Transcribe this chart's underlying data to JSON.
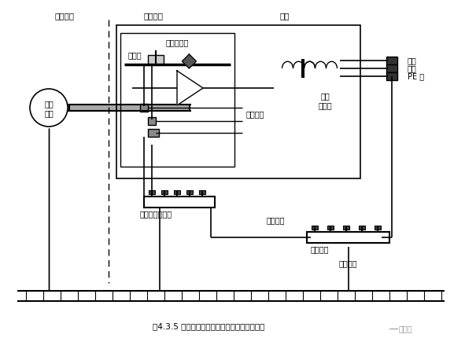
{
  "title": "图4.3.5 齐纳式安全栅本安系统接地连接示意图",
  "watermark": "仪表圈",
  "labels": {
    "dangerous": "危险场所",
    "safe": "安全场所",
    "cabinet": "机柜",
    "field_top": "现场",
    "field_bot": "仪表",
    "busbar": "汇流排",
    "zener_barrier": "齐纳安全栅",
    "ground_wire": "接地导线",
    "power": "电源",
    "common": "公共端",
    "work_ground_bus": "工作接地汇总板",
    "ground_trunk": "接地干线",
    "total_ground": "总接地板",
    "ground_device": "接地装置",
    "phase_line": "相线",
    "neutral_line": "中线",
    "pe_line": "PE 线"
  },
  "fig_width": 5.91,
  "fig_height": 4.44,
  "dpi": 100
}
